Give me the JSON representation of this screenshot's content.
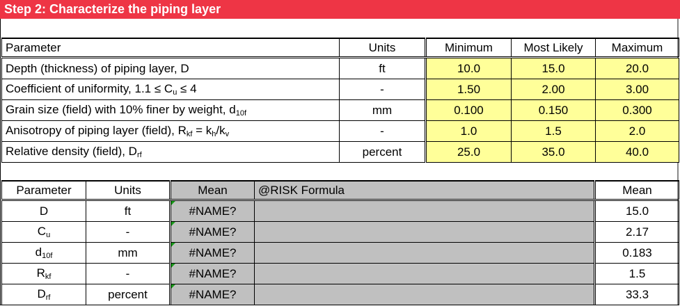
{
  "title": "Step 2: Characterize the piping layer",
  "table1": {
    "headers": [
      "Parameter",
      "Units",
      "Minimum",
      "Most Likely",
      "Maximum"
    ],
    "rows": [
      {
        "param": "Depth (thickness) of piping layer, D",
        "sub": "",
        "tail": "",
        "units": "ft",
        "min": "10.0",
        "ml": "15.0",
        "max": "20.0"
      },
      {
        "param": "Coefficient of uniformity, 1.1 ≤ C",
        "sub": "u",
        "tail": " ≤ 4",
        "units": "-",
        "min": "1.50",
        "ml": "2.00",
        "max": "3.00"
      },
      {
        "param": "Grain size (field) with 10% finer by weight, d",
        "sub": "10f",
        "tail": "",
        "units": "mm",
        "min": "0.100",
        "ml": "0.150",
        "max": "0.300"
      },
      {
        "param": "Anisotropy of piping layer (field), R",
        "sub": "kf",
        "tail": " = k",
        "sub2": "h",
        "tail2": "/k",
        "sub3": "v",
        "units": "-",
        "min": "1.0",
        "ml": "1.5",
        "max": "2.0"
      },
      {
        "param": "Relative density (field), D",
        "sub": "rf",
        "tail": "",
        "units": "percent",
        "min": "25.0",
        "ml": "35.0",
        "max": "40.0"
      }
    ]
  },
  "table2": {
    "headers": [
      "Parameter",
      "Units",
      "Mean",
      "@RISK Formula",
      "Mean"
    ],
    "rows": [
      {
        "p": "D",
        "sub": "",
        "units": "ft",
        "mean": "#NAME?",
        "formula": "",
        "mean2": "15.0"
      },
      {
        "p": "C",
        "sub": "u",
        "units": "-",
        "mean": "#NAME?",
        "formula": "",
        "mean2": "2.17"
      },
      {
        "p": "d",
        "sub": "10f",
        "units": "mm",
        "mean": "#NAME?",
        "formula": "",
        "mean2": "0.183"
      },
      {
        "p": "R",
        "sub": "kf",
        "units": "-",
        "mean": "#NAME?",
        "formula": "",
        "mean2": "1.5"
      },
      {
        "p": "D",
        "sub": "rf",
        "units": "percent",
        "mean": "#NAME?",
        "formula": "",
        "mean2": "33.3"
      }
    ]
  },
  "colors": {
    "title_bg": "#ee3545",
    "input_bg": "#ffff99",
    "formula_bg": "#c0c0c0"
  }
}
